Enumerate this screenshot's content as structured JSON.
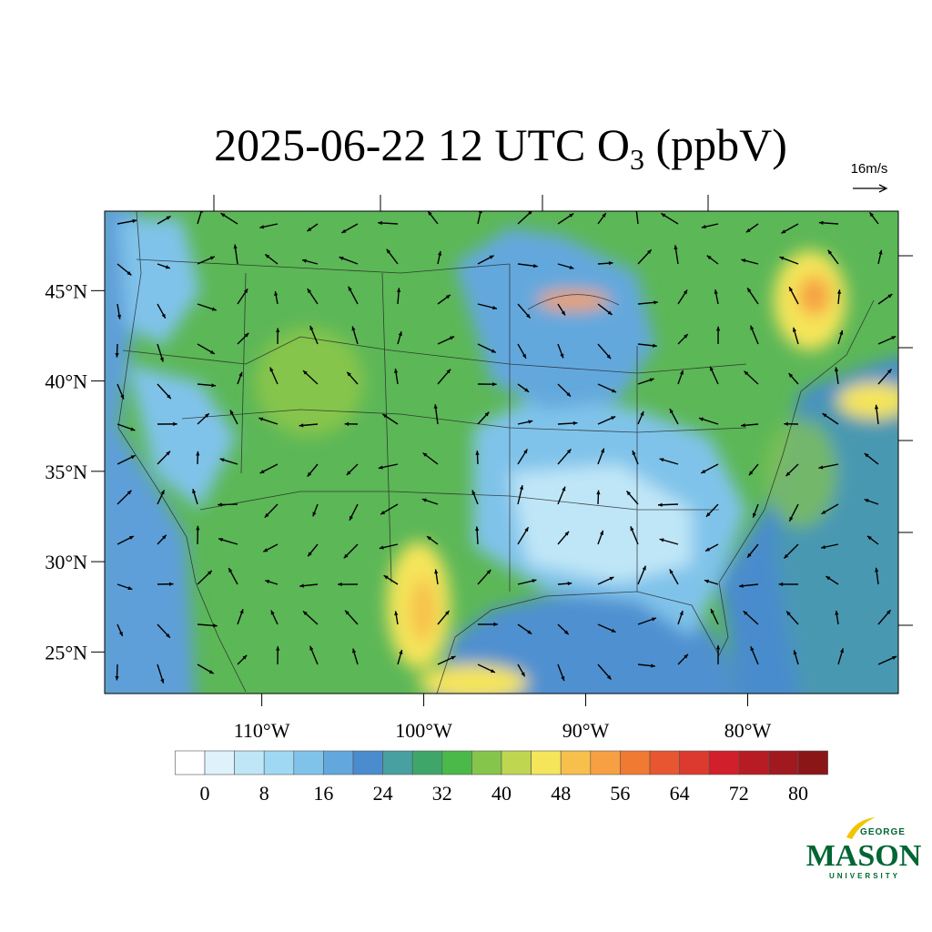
{
  "title": {
    "text": "2025-06-22 12 UTC O",
    "subscript": "3",
    "suffix": " (ppbV)"
  },
  "reference_vector": "16m/s",
  "lon_lim": [
    -119.7,
    -70.7
  ],
  "lat_lim": [
    22.7,
    49.4
  ],
  "lat_labels": [
    {
      "value": 45,
      "label": "45°N"
    },
    {
      "value": 40,
      "label": "40°N"
    },
    {
      "value": 35,
      "label": "35°N"
    },
    {
      "value": 30,
      "label": "30°N"
    },
    {
      "value": 25,
      "label": "25°N"
    }
  ],
  "lon_labels": [
    {
      "value": -110,
      "label": "110°W"
    },
    {
      "value": -100,
      "label": "100°W"
    },
    {
      "value": -90,
      "label": "90°W"
    },
    {
      "value": -80,
      "label": "80°W"
    }
  ],
  "colorbar": {
    "levels": [
      0,
      4,
      8,
      12,
      16,
      20,
      24,
      28,
      32,
      36,
      40,
      44,
      48,
      52,
      56,
      60,
      64,
      68,
      72,
      76,
      80
    ],
    "labels": [
      0,
      8,
      16,
      24,
      32,
      40,
      48,
      56,
      64,
      72,
      80
    ],
    "colors": [
      "#ffffff",
      "#dff1fb",
      "#bfe6f7",
      "#9fd8f3",
      "#80c3ea",
      "#63a8dd",
      "#4a8ccd",
      "#48a0a0",
      "#3fa66a",
      "#4bb84a",
      "#86c54b",
      "#bfd651",
      "#f5e55a",
      "#f7c04c",
      "#f6a043",
      "#f07a32",
      "#e75630",
      "#dc3a2e",
      "#d11f2b",
      "#b71c24",
      "#a0191f",
      "#8a1618"
    ]
  },
  "logo": {
    "top": "GEORGE",
    "name": "MASON",
    "bottom": "UNIVERSITY"
  }
}
